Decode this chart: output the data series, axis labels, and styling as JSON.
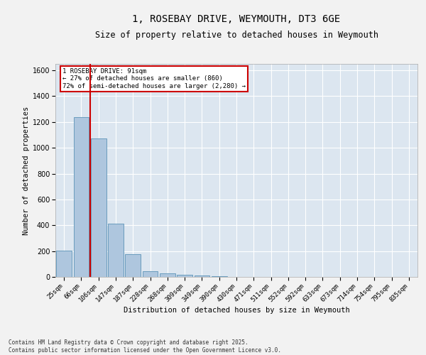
{
  "title": "1, ROSEBAY DRIVE, WEYMOUTH, DT3 6GE",
  "subtitle": "Size of property relative to detached houses in Weymouth",
  "xlabel": "Distribution of detached houses by size in Weymouth",
  "ylabel": "Number of detached properties",
  "categories": [
    "25sqm",
    "66sqm",
    "106sqm",
    "147sqm",
    "187sqm",
    "228sqm",
    "268sqm",
    "309sqm",
    "349sqm",
    "390sqm",
    "430sqm",
    "471sqm",
    "511sqm",
    "552sqm",
    "592sqm",
    "633sqm",
    "673sqm",
    "714sqm",
    "754sqm",
    "795sqm",
    "835sqm"
  ],
  "values": [
    205,
    1235,
    1075,
    415,
    178,
    45,
    25,
    18,
    12,
    5,
    0,
    0,
    0,
    0,
    0,
    0,
    0,
    0,
    0,
    0,
    0
  ],
  "bar_color": "#aec6de",
  "bar_edge_color": "#6a9cbd",
  "vline_x": 1.5,
  "vline_color": "#cc0000",
  "annotation_text": "1 ROSEBAY DRIVE: 91sqm\n← 27% of detached houses are smaller (860)\n72% of semi-detached houses are larger (2,280) →",
  "annotation_box_color": "#cc0000",
  "ylim": [
    0,
    1650
  ],
  "yticks": [
    0,
    200,
    400,
    600,
    800,
    1000,
    1200,
    1400,
    1600
  ],
  "background_color": "#dce6f0",
  "grid_color": "#ffffff",
  "fig_background": "#f2f2f2",
  "footer": "Contains HM Land Registry data © Crown copyright and database right 2025.\nContains public sector information licensed under the Open Government Licence v3.0.",
  "title_fontsize": 10,
  "subtitle_fontsize": 8.5,
  "label_fontsize": 7.5,
  "tick_fontsize": 6.5,
  "footer_fontsize": 5.5
}
